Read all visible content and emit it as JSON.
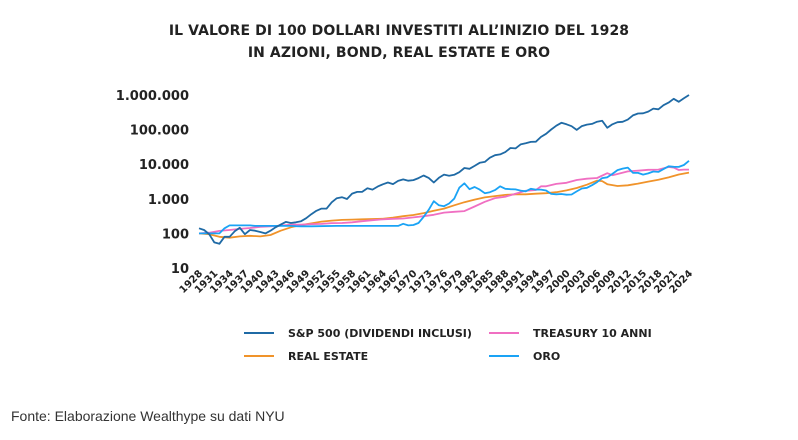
{
  "title_line1": "IL VALORE DI 100 DOLLARI INVESTITI ALL’INIZIO DEL 1928",
  "title_line2": "IN AZIONI, BOND, REAL ESTATE E ORO",
  "source": "Fonte: Elaborazione Wealthype su dati NYU",
  "chart_data": {
    "type": "line",
    "title": "IL VALORE DI 100 DOLLARI INVESTITI ALL’INIZIO DEL 1928 IN AZIONI, BOND, REAL ESTATE E ORO",
    "xlabel": "",
    "ylabel": "",
    "xlim": [
      1928,
      2024
    ],
    "ylim": [
      10,
      1000000
    ],
    "yscale": "log",
    "grid": false,
    "legend_position": "bottom",
    "y_ticks": [
      10,
      100,
      1000,
      10000,
      100000,
      1000000
    ],
    "y_tick_labels": [
      "10",
      "100",
      "1.000",
      "10.000",
      "100.000",
      "1.000.000"
    ],
    "x_ticks": [
      1928,
      1931,
      1934,
      1937,
      1940,
      1943,
      1946,
      1949,
      1952,
      1955,
      1958,
      1961,
      1964,
      1967,
      1970,
      1973,
      1976,
      1979,
      1982,
      1985,
      1988,
      1991,
      1994,
      1997,
      2000,
      2003,
      2006,
      2009,
      2012,
      2015,
      2018,
      2021,
      2024
    ],
    "x_tick_labels": [
      "1928",
      "1931",
      "1934",
      "1937",
      "1940",
      "1943",
      "1946",
      "1949",
      "1952",
      "1955",
      "1958",
      "1961",
      "1964",
      "1967",
      "1970",
      "1973",
      "1976",
      "1979",
      "1982",
      "1985",
      "1988",
      "1991",
      "1994",
      "1997",
      "2000",
      "2003",
      "2006",
      "2009",
      "2012",
      "2015",
      "2018",
      "2021",
      "2024"
    ],
    "series": [
      {
        "name": "S&P 500 (DIVIDENDI INCLUSI)",
        "color": "#1f6aa5",
        "points": [
          [
            1928,
            140
          ],
          [
            1929,
            125
          ],
          [
            1930,
            95
          ],
          [
            1931,
            55
          ],
          [
            1932,
            50
          ],
          [
            1933,
            80
          ],
          [
            1934,
            80
          ],
          [
            1935,
            115
          ],
          [
            1936,
            145
          ],
          [
            1937,
            95
          ],
          [
            1938,
            125
          ],
          [
            1939,
            120
          ],
          [
            1940,
            110
          ],
          [
            1941,
            100
          ],
          [
            1942,
            120
          ],
          [
            1943,
            150
          ],
          [
            1944,
            180
          ],
          [
            1945,
            215
          ],
          [
            1946,
            200
          ],
          [
            1947,
            210
          ],
          [
            1948,
            225
          ],
          [
            1949,
            275
          ],
          [
            1950,
            360
          ],
          [
            1951,
            450
          ],
          [
            1952,
            520
          ],
          [
            1953,
            520
          ],
          [
            1954,
            790
          ],
          [
            1955,
            1040
          ],
          [
            1956,
            1110
          ],
          [
            1957,
            990
          ],
          [
            1958,
            1410
          ],
          [
            1959,
            1580
          ],
          [
            1960,
            1590
          ],
          [
            1961,
            2010
          ],
          [
            1962,
            1840
          ],
          [
            1963,
            2250
          ],
          [
            1964,
            2630
          ],
          [
            1965,
            2950
          ],
          [
            1966,
            2660
          ],
          [
            1967,
            3300
          ],
          [
            1968,
            3640
          ],
          [
            1969,
            3330
          ],
          [
            1970,
            3460
          ],
          [
            1971,
            3960
          ],
          [
            1972,
            4710
          ],
          [
            1973,
            4020
          ],
          [
            1974,
            2950
          ],
          [
            1975,
            4050
          ],
          [
            1976,
            5010
          ],
          [
            1977,
            4650
          ],
          [
            1978,
            4950
          ],
          [
            1979,
            5860
          ],
          [
            1980,
            7760
          ],
          [
            1981,
            7380
          ],
          [
            1982,
            8960
          ],
          [
            1983,
            10980
          ],
          [
            1984,
            11670
          ],
          [
            1985,
            15370
          ],
          [
            1986,
            18240
          ],
          [
            1987,
            19190
          ],
          [
            1988,
            22380
          ],
          [
            1989,
            29460
          ],
          [
            1990,
            28540
          ],
          [
            1991,
            37230
          ],
          [
            1992,
            40070
          ],
          [
            1993,
            44110
          ],
          [
            1994,
            44690
          ],
          [
            1995,
            61480
          ],
          [
            1996,
            75600
          ],
          [
            1997,
            100820
          ],
          [
            1998,
            129630
          ],
          [
            1999,
            156890
          ],
          [
            2000,
            142600
          ],
          [
            2001,
            125650
          ],
          [
            2002,
            97880
          ],
          [
            2003,
            125960
          ],
          [
            2004,
            139670
          ],
          [
            2005,
            146540
          ],
          [
            2006,
            169690
          ],
          [
            2007,
            179020
          ],
          [
            2008,
            112780
          ],
          [
            2009,
            142610
          ],
          [
            2010,
            164080
          ],
          [
            2011,
            167540
          ],
          [
            2012,
            194330
          ],
          [
            2013,
            257260
          ],
          [
            2014,
            292480
          ],
          [
            2015,
            296520
          ],
          [
            2016,
            331980
          ],
          [
            2017,
            404470
          ],
          [
            2018,
            386730
          ],
          [
            2019,
            508520
          ],
          [
            2020,
            601580
          ],
          [
            2021,
            774270
          ],
          [
            2022,
            634000
          ],
          [
            2023,
            800510
          ],
          [
            2024,
            1000000
          ]
        ]
      },
      {
        "name": "TREASURY 10 ANNI",
        "color": "#f06fc2",
        "points": [
          [
            1928,
            100
          ],
          [
            1930,
            105
          ],
          [
            1932,
            118
          ],
          [
            1934,
            125
          ],
          [
            1936,
            135
          ],
          [
            1938,
            143
          ],
          [
            1940,
            155
          ],
          [
            1942,
            160
          ],
          [
            1944,
            168
          ],
          [
            1946,
            178
          ],
          [
            1948,
            180
          ],
          [
            1950,
            186
          ],
          [
            1952,
            188
          ],
          [
            1954,
            198
          ],
          [
            1956,
            200
          ],
          [
            1958,
            210
          ],
          [
            1960,
            225
          ],
          [
            1962,
            240
          ],
          [
            1964,
            255
          ],
          [
            1966,
            265
          ],
          [
            1968,
            270
          ],
          [
            1970,
            290
          ],
          [
            1972,
            315
          ],
          [
            1974,
            345
          ],
          [
            1976,
            400
          ],
          [
            1978,
            420
          ],
          [
            1980,
            440
          ],
          [
            1982,
            600
          ],
          [
            1984,
            820
          ],
          [
            1986,
            1050
          ],
          [
            1988,
            1150
          ],
          [
            1990,
            1400
          ],
          [
            1992,
            1700
          ],
          [
            1994,
            1800
          ],
          [
            1995,
            2300
          ],
          [
            1996,
            2300
          ],
          [
            1998,
            2700
          ],
          [
            2000,
            2900
          ],
          [
            2002,
            3500
          ],
          [
            2004,
            3800
          ],
          [
            2006,
            4000
          ],
          [
            2008,
            5500
          ],
          [
            2009,
            4800
          ],
          [
            2010,
            5200
          ],
          [
            2012,
            6200
          ],
          [
            2014,
            6500
          ],
          [
            2016,
            6900
          ],
          [
            2018,
            7000
          ],
          [
            2020,
            8300
          ],
          [
            2021,
            8000
          ],
          [
            2022,
            6800
          ],
          [
            2023,
            7000
          ],
          [
            2024,
            7000
          ]
        ]
      },
      {
        "name": "REAL ESTATE",
        "color": "#f0932a",
        "points": [
          [
            1928,
            100
          ],
          [
            1930,
            95
          ],
          [
            1932,
            80
          ],
          [
            1934,
            75
          ],
          [
            1936,
            82
          ],
          [
            1938,
            85
          ],
          [
            1940,
            82
          ],
          [
            1942,
            90
          ],
          [
            1944,
            120
          ],
          [
            1946,
            150
          ],
          [
            1948,
            175
          ],
          [
            1950,
            195
          ],
          [
            1952,
            220
          ],
          [
            1954,
            235
          ],
          [
            1956,
            245
          ],
          [
            1958,
            250
          ],
          [
            1960,
            255
          ],
          [
            1962,
            260
          ],
          [
            1964,
            265
          ],
          [
            1966,
            285
          ],
          [
            1968,
            315
          ],
          [
            1970,
            340
          ],
          [
            1972,
            385
          ],
          [
            1974,
            450
          ],
          [
            1976,
            520
          ],
          [
            1978,
            650
          ],
          [
            1980,
            800
          ],
          [
            1982,
            950
          ],
          [
            1984,
            1100
          ],
          [
            1986,
            1200
          ],
          [
            1988,
            1300
          ],
          [
            1990,
            1350
          ],
          [
            1992,
            1350
          ],
          [
            1994,
            1400
          ],
          [
            1996,
            1450
          ],
          [
            1998,
            1550
          ],
          [
            2000,
            1750
          ],
          [
            2002,
            2050
          ],
          [
            2004,
            2550
          ],
          [
            2006,
            3350
          ],
          [
            2007,
            3250
          ],
          [
            2008,
            2650
          ],
          [
            2010,
            2350
          ],
          [
            2012,
            2450
          ],
          [
            2014,
            2750
          ],
          [
            2016,
            3150
          ],
          [
            2018,
            3550
          ],
          [
            2020,
            4150
          ],
          [
            2022,
            5050
          ],
          [
            2024,
            5700
          ]
        ]
      },
      {
        "name": "ORO",
        "color": "#1aa3f5",
        "points": [
          [
            1928,
            100
          ],
          [
            1932,
            100
          ],
          [
            1933,
            140
          ],
          [
            1934,
            170
          ],
          [
            1935,
            170
          ],
          [
            1936,
            170
          ],
          [
            1937,
            170
          ],
          [
            1938,
            170
          ],
          [
            1939,
            165
          ],
          [
            1940,
            165
          ],
          [
            1944,
            165
          ],
          [
            1945,
            165
          ],
          [
            1946,
            165
          ],
          [
            1947,
            162
          ],
          [
            1948,
            160
          ],
          [
            1950,
            160
          ],
          [
            1955,
            165
          ],
          [
            1960,
            165
          ],
          [
            1965,
            165
          ],
          [
            1966,
            165
          ],
          [
            1967,
            165
          ],
          [
            1968,
            190
          ],
          [
            1969,
            170
          ],
          [
            1970,
            175
          ],
          [
            1971,
            200
          ],
          [
            1972,
            300
          ],
          [
            1973,
            480
          ],
          [
            1974,
            850
          ],
          [
            1975,
            650
          ],
          [
            1976,
            610
          ],
          [
            1977,
            730
          ],
          [
            1978,
            1010
          ],
          [
            1979,
            2100
          ],
          [
            1980,
            2800
          ],
          [
            1981,
            1900
          ],
          [
            1982,
            2200
          ],
          [
            1983,
            1850
          ],
          [
            1984,
            1450
          ],
          [
            1985,
            1550
          ],
          [
            1986,
            1780
          ],
          [
            1987,
            2300
          ],
          [
            1988,
            1950
          ],
          [
            1989,
            1900
          ],
          [
            1990,
            1870
          ],
          [
            1991,
            1730
          ],
          [
            1992,
            1650
          ],
          [
            1993,
            1950
          ],
          [
            1994,
            1850
          ],
          [
            1995,
            1850
          ],
          [
            1996,
            1740
          ],
          [
            1997,
            1390
          ],
          [
            1998,
            1350
          ],
          [
            1999,
            1380
          ],
          [
            2000,
            1310
          ],
          [
            2001,
            1330
          ],
          [
            2002,
            1640
          ],
          [
            2003,
            1990
          ],
          [
            2004,
            2080
          ],
          [
            2005,
            2470
          ],
          [
            2006,
            3040
          ],
          [
            2007,
            3970
          ],
          [
            2008,
            4180
          ],
          [
            2009,
            5250
          ],
          [
            2010,
            6770
          ],
          [
            2011,
            7470
          ],
          [
            2012,
            7970
          ],
          [
            2013,
            5650
          ],
          [
            2014,
            5590
          ],
          [
            2015,
            5010
          ],
          [
            2016,
            5410
          ],
          [
            2017,
            6140
          ],
          [
            2018,
            6000
          ],
          [
            2019,
            7200
          ],
          [
            2020,
            8700
          ],
          [
            2021,
            8390
          ],
          [
            2022,
            8380
          ],
          [
            2023,
            9500
          ],
          [
            2024,
            12500
          ]
        ]
      }
    ]
  }
}
